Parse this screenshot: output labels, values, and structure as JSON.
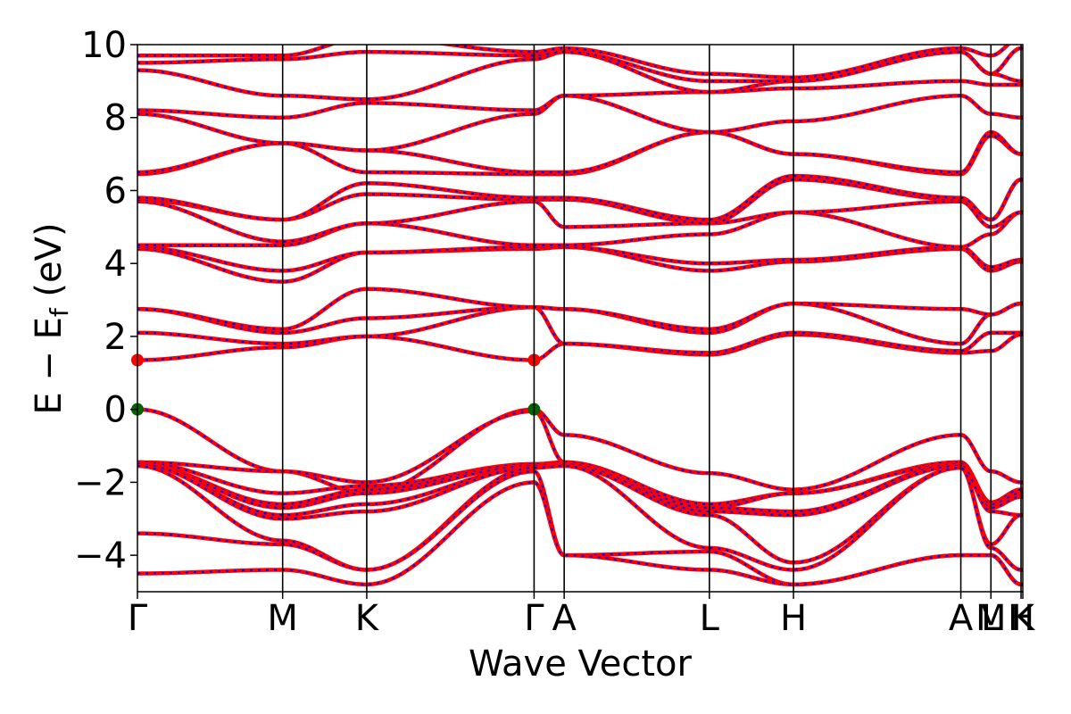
{
  "chart_data": {
    "type": "line",
    "title": "",
    "xlabel": "Wave Vector",
    "ylabel": "E − E",
    "ylabel_sub": "f",
    "ylabel_unit": " (eV)",
    "ylim": [
      -5,
      10
    ],
    "yticks": [
      {
        "value": 10,
        "label": "10"
      },
      {
        "value": 8,
        "label": "8"
      },
      {
        "value": 6,
        "label": "6"
      },
      {
        "value": 4,
        "label": "4"
      },
      {
        "value": 2,
        "label": "2"
      },
      {
        "value": 0,
        "label": "0"
      },
      {
        "value": -2,
        "label": "−2"
      },
      {
        "value": -4,
        "label": "−4"
      }
    ],
    "xlim": [
      0,
      1
    ],
    "kpoints": [
      {
        "label": "Γ",
        "x": 0.0
      },
      {
        "label": "M",
        "x": 0.164
      },
      {
        "label": "K",
        "x": 0.259
      },
      {
        "label": "Γ",
        "x": 0.448
      },
      {
        "label": "A",
        "x": 0.482
      },
      {
        "label": "L",
        "x": 0.646
      },
      {
        "label": "H",
        "x": 0.741
      },
      {
        "label": "A",
        "x": 0.93
      },
      {
        "label": "L",
        "x": 0.964
      },
      {
        "label": "M",
        "x": 0.964
      },
      {
        "label": "H",
        "x": 0.998
      },
      {
        "label": "K",
        "x": 1.0
      }
    ],
    "series_colors": {
      "band_solid": "#ff0000",
      "band_dashed": "#0000ff"
    },
    "cbm": {
      "x": [
        0.0,
        0.448
      ],
      "y": 1.35,
      "color": "#ff0000"
    },
    "vbm": {
      "x": [
        0.0,
        0.448
      ],
      "y": 0.0,
      "color": "#006400"
    },
    "grid": false,
    "legend": "none"
  }
}
